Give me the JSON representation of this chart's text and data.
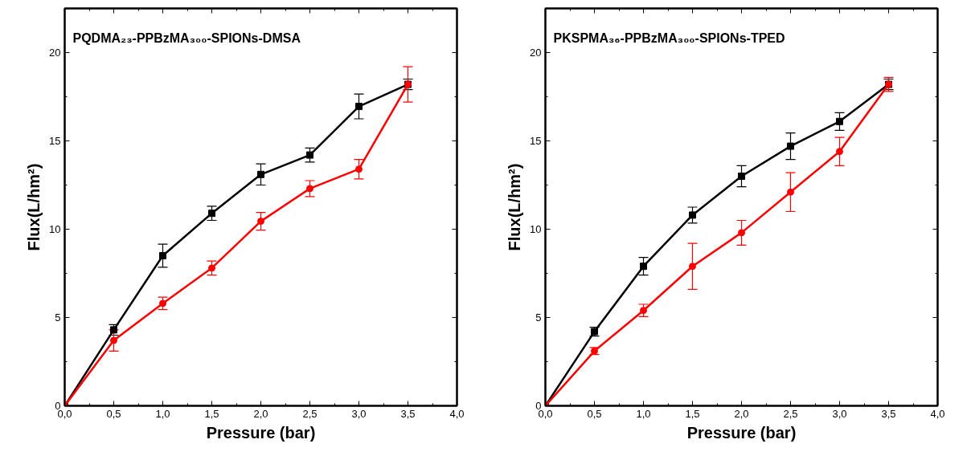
{
  "chart_data": [
    {
      "type": "line",
      "title": "PQDMA₂₃-PPBzMA₃₀₀-SPIONs-DMSA",
      "xlabel": "Pressure (bar)",
      "ylabel": "Flux(L/hm²)",
      "x": [
        0,
        0.5,
        1.0,
        1.5,
        2.0,
        2.5,
        3.0,
        3.5
      ],
      "series": [
        {
          "color": "#000000",
          "marker": "square",
          "values": [
            0,
            4.3,
            8.5,
            10.9,
            13.1,
            14.2,
            16.95,
            18.2
          ],
          "errors": [
            null,
            0.3,
            0.65,
            0.4,
            0.6,
            0.4,
            0.7,
            0.3
          ]
        },
        {
          "color": "#ff0000",
          "marker": "circle",
          "values": [
            0,
            3.7,
            5.8,
            7.8,
            10.45,
            12.3,
            13.4,
            18.2
          ],
          "errors": [
            null,
            0.6,
            0.35,
            0.4,
            0.5,
            0.45,
            0.55,
            1.0
          ]
        }
      ],
      "xlim": [
        0,
        4
      ],
      "ylim": [
        0,
        22.5
      ],
      "xticks": [
        {
          "value": 0,
          "label": "0,0"
        },
        {
          "value": 0.5,
          "label": "0,5"
        },
        {
          "value": 1,
          "label": "1,0"
        },
        {
          "value": 1.5,
          "label": "1,5"
        },
        {
          "value": 2,
          "label": "2,0"
        },
        {
          "value": 2.5,
          "label": "2,5"
        },
        {
          "value": 3,
          "label": "3,0"
        },
        {
          "value": 3.5,
          "label": "3,5"
        },
        {
          "value": 4,
          "label": "4,0"
        }
      ],
      "yticks": [
        0,
        5,
        10,
        15,
        20
      ],
      "grid": false,
      "line_style": "solid"
    },
    {
      "type": "line",
      "title": "PKSPMA₃₆-PPBzMA₃₀₀-SPIONs-TPED",
      "xlabel": "Pressure (bar)",
      "ylabel": "Flux(L/hm²)",
      "x": [
        0,
        0.5,
        1.0,
        1.5,
        2.0,
        2.5,
        3.0,
        3.5
      ],
      "series": [
        {
          "color": "#000000",
          "marker": "square",
          "values": [
            0,
            4.2,
            7.9,
            10.8,
            13.0,
            14.7,
            16.1,
            18.2
          ],
          "errors": [
            null,
            0.25,
            0.5,
            0.45,
            0.6,
            0.75,
            0.5,
            0.3
          ]
        },
        {
          "color": "#ff0000",
          "marker": "circle",
          "values": [
            0,
            3.1,
            5.4,
            7.9,
            9.8,
            12.1,
            14.4,
            18.2
          ],
          "errors": [
            null,
            0.2,
            0.35,
            1.3,
            0.7,
            1.1,
            0.8,
            0.4
          ]
        }
      ],
      "xlim": [
        0,
        4
      ],
      "ylim": [
        0,
        22.5
      ],
      "xticks": [
        {
          "value": 0,
          "label": "0,0"
        },
        {
          "value": 0.5,
          "label": "0,5"
        },
        {
          "value": 1,
          "label": "1,0"
        },
        {
          "value": 1.5,
          "label": "1,5"
        },
        {
          "value": 2,
          "label": "2,0"
        },
        {
          "value": 2.5,
          "label": "2,5"
        },
        {
          "value": 3,
          "label": "3,0"
        },
        {
          "value": 3.5,
          "label": "3,5"
        },
        {
          "value": 4,
          "label": "4,0"
        }
      ],
      "yticks": [
        0,
        5,
        10,
        15,
        20
      ],
      "grid": false,
      "line_style": "solid"
    }
  ]
}
